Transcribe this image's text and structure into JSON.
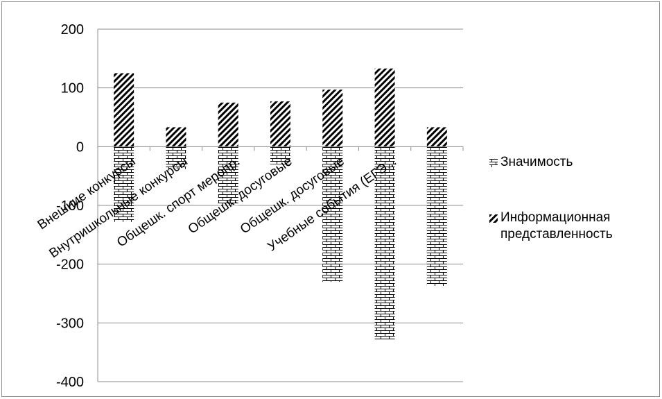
{
  "chart_data": {
    "type": "bar",
    "categories": [
      "Внешние конкурсы",
      "Внутришкольные конкурсы",
      "Общешк. спорт меропр.",
      "Общешк. досуговые",
      "Общешк. досуговые",
      "Учебные события (ЕГЭ...",
      ""
    ],
    "series": [
      {
        "name": "Значимость",
        "pattern": "brick",
        "values": [
          -128,
          -38,
          -100,
          -30,
          -230,
          -328,
          -237
        ]
      },
      {
        "name": "Информационная представленность",
        "pattern": "diagonal",
        "values": [
          125,
          33,
          75,
          77,
          97,
          133,
          33
        ]
      }
    ],
    "yticks": [
      "200",
      "100",
      "0",
      "-100",
      "-200",
      "-300",
      "-400"
    ],
    "ylim": [
      -400,
      200
    ],
    "grid": true,
    "legend_position": "right",
    "colors": {
      "ink": "#000000",
      "grid": "#8c8c8c",
      "background": "#ffffff"
    }
  }
}
